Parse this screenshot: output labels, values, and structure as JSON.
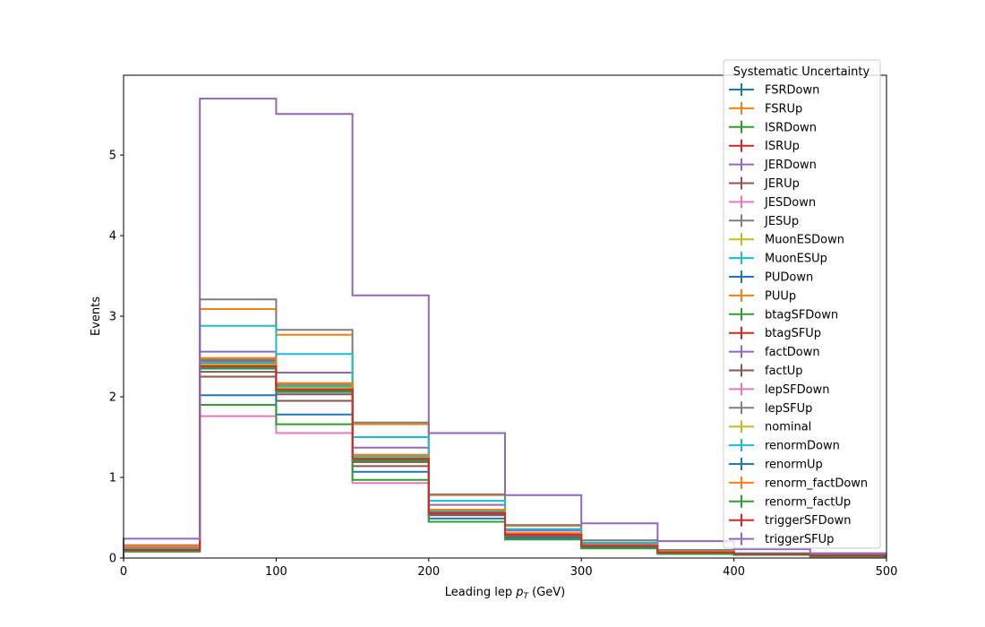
{
  "chart_data": {
    "type": "line",
    "drawstyle": "step",
    "x_edges": [
      0,
      50,
      100,
      150,
      200,
      250,
      300,
      350,
      400,
      450,
      500
    ],
    "xlabel_main": "Leading lep ",
    "xlabel_math_base": "p",
    "xlabel_math_sub": "T",
    "xlabel_unit": " (GeV)",
    "ylabel": "Events",
    "xlim": [
      0,
      500
    ],
    "ylim": [
      0,
      6
    ],
    "xticks": [
      "0",
      "100",
      "200",
      "300",
      "400",
      "500"
    ],
    "yticks": [
      "0",
      "1",
      "2",
      "3",
      "4",
      "5"
    ],
    "grid": false,
    "legend": {
      "title": "Systematic Uncertainty",
      "placement": "top-right"
    },
    "series": [
      {
        "name": "FSRDown",
        "color": "#1f77b4",
        "values": [
          0.09,
          2.47,
          2.12,
          1.24,
          0.57,
          0.3,
          0.16,
          0.07,
          0.05,
          0.03
        ]
      },
      {
        "name": "FSRUp",
        "color": "#ff7f0e",
        "values": [
          0.13,
          3.09,
          2.77,
          1.66,
          0.78,
          0.4,
          0.22,
          0.09,
          0.06,
          0.04
        ]
      },
      {
        "name": "ISRDown",
        "color": "#2ca02c",
        "values": [
          0.1,
          2.43,
          2.14,
          1.25,
          0.56,
          0.29,
          0.15,
          0.07,
          0.05,
          0.03
        ]
      },
      {
        "name": "ISRUp",
        "color": "#d62728",
        "values": [
          0.1,
          2.4,
          2.1,
          1.22,
          0.56,
          0.29,
          0.15,
          0.07,
          0.05,
          0.03
        ]
      },
      {
        "name": "JERDown",
        "color": "#9467bd",
        "values": [
          0.11,
          2.56,
          2.3,
          1.37,
          0.66,
          0.34,
          0.18,
          0.08,
          0.05,
          0.03
        ]
      },
      {
        "name": "JERUp",
        "color": "#8c564b",
        "values": [
          0.1,
          2.25,
          1.95,
          1.14,
          0.53,
          0.27,
          0.14,
          0.06,
          0.04,
          0.03
        ]
      },
      {
        "name": "JESDown",
        "color": "#e377c2",
        "values": [
          0.08,
          1.76,
          1.55,
          0.93,
          0.45,
          0.23,
          0.13,
          0.06,
          0.04,
          0.02
        ]
      },
      {
        "name": "JESUp",
        "color": "#7f7f7f",
        "values": [
          0.16,
          3.21,
          2.83,
          1.68,
          0.79,
          0.41,
          0.22,
          0.1,
          0.06,
          0.04
        ]
      },
      {
        "name": "MuonESDown",
        "color": "#bcbd22",
        "values": [
          0.1,
          2.36,
          2.07,
          1.21,
          0.55,
          0.28,
          0.15,
          0.07,
          0.05,
          0.03
        ]
      },
      {
        "name": "MuonESUp",
        "color": "#17becf",
        "values": [
          0.12,
          2.88,
          2.53,
          1.5,
          0.71,
          0.36,
          0.19,
          0.08,
          0.06,
          0.04
        ]
      },
      {
        "name": "PUDown",
        "color": "#1f77b4",
        "values": [
          0.09,
          2.02,
          1.78,
          1.07,
          0.49,
          0.25,
          0.13,
          0.06,
          0.04,
          0.03
        ]
      },
      {
        "name": "PUUp",
        "color": "#ff7f0e",
        "values": [
          0.11,
          2.45,
          2.15,
          1.26,
          0.58,
          0.3,
          0.16,
          0.07,
          0.05,
          0.03
        ]
      },
      {
        "name": "btagSFDown",
        "color": "#2ca02c",
        "values": [
          0.08,
          1.9,
          1.66,
          0.97,
          0.45,
          0.23,
          0.12,
          0.05,
          0.04,
          0.02
        ]
      },
      {
        "name": "btagSFUp",
        "color": "#d62728",
        "values": [
          0.11,
          2.44,
          2.13,
          1.27,
          0.59,
          0.3,
          0.16,
          0.07,
          0.05,
          0.03
        ]
      },
      {
        "name": "factDown",
        "color": "#9467bd",
        "values": [
          0.12,
          2.42,
          2.12,
          1.25,
          0.58,
          0.3,
          0.16,
          0.07,
          0.05,
          0.03
        ]
      },
      {
        "name": "factUp",
        "color": "#8c564b",
        "values": [
          0.1,
          2.31,
          2.03,
          1.19,
          0.55,
          0.28,
          0.15,
          0.07,
          0.05,
          0.03
        ]
      },
      {
        "name": "lepSFDown",
        "color": "#e377c2",
        "values": [
          0.1,
          2.38,
          2.09,
          1.22,
          0.57,
          0.29,
          0.15,
          0.07,
          0.05,
          0.03
        ]
      },
      {
        "name": "lepSFUp",
        "color": "#7f7f7f",
        "values": [
          0.11,
          2.46,
          2.16,
          1.27,
          0.59,
          0.3,
          0.16,
          0.07,
          0.05,
          0.03
        ]
      },
      {
        "name": "nominal",
        "color": "#bcbd22",
        "values": [
          0.1,
          2.4,
          2.11,
          1.24,
          0.57,
          0.29,
          0.15,
          0.07,
          0.05,
          0.03
        ]
      },
      {
        "name": "renormDown",
        "color": "#17becf",
        "values": [
          0.11,
          2.43,
          2.13,
          1.26,
          0.58,
          0.3,
          0.16,
          0.07,
          0.05,
          0.03
        ]
      },
      {
        "name": "renormUp",
        "color": "#1f77b4",
        "values": [
          0.1,
          2.35,
          2.06,
          1.21,
          0.56,
          0.29,
          0.15,
          0.07,
          0.05,
          0.03
        ]
      },
      {
        "name": "renorm_factDown",
        "color": "#ff7f0e",
        "values": [
          0.15,
          2.48,
          2.17,
          1.28,
          0.6,
          0.31,
          0.16,
          0.08,
          0.05,
          0.03
        ]
      },
      {
        "name": "renorm_factUp",
        "color": "#2ca02c",
        "values": [
          0.1,
          2.36,
          2.07,
          1.21,
          0.56,
          0.29,
          0.15,
          0.07,
          0.05,
          0.03
        ]
      },
      {
        "name": "triggerSFDown",
        "color": "#d62728",
        "values": [
          0.1,
          2.38,
          2.09,
          1.23,
          0.56,
          0.29,
          0.15,
          0.07,
          0.05,
          0.03
        ]
      },
      {
        "name": "triggerSFUp",
        "color": "#9467bd",
        "values": [
          0.24,
          5.7,
          5.51,
          3.26,
          1.55,
          0.78,
          0.43,
          0.21,
          0.11,
          0.06
        ]
      }
    ]
  }
}
